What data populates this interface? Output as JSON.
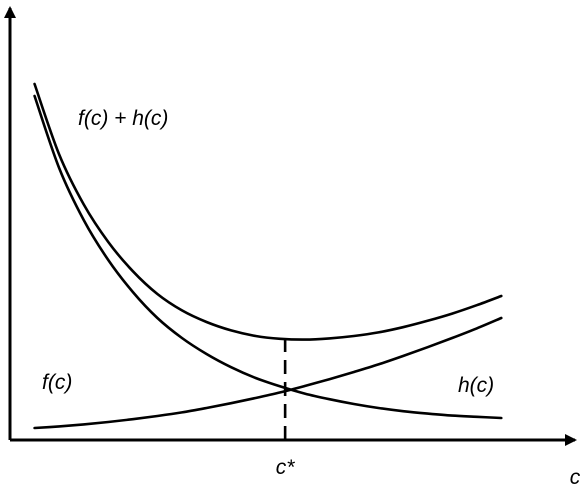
{
  "chart_data": {
    "type": "line",
    "title": "",
    "xlabel": "c",
    "ylabel": "",
    "grid": false,
    "series": [
      {
        "name": "f(c)",
        "x": [
          0.5,
          1,
          1.5,
          2,
          2.5,
          3,
          3.5,
          4,
          4.5,
          5,
          5.5,
          6,
          6.5,
          7,
          7.5,
          8,
          8.5,
          9,
          9.5,
          10
        ],
        "y": [
          0.3,
          0.34,
          0.39,
          0.45,
          0.52,
          0.6,
          0.69,
          0.8,
          0.92,
          1.05,
          1.19,
          1.35,
          1.52,
          1.7,
          1.89,
          2.1,
          2.32,
          2.55,
          2.79,
          3.05
        ]
      },
      {
        "name": "h(c)",
        "x": [
          0.5,
          1,
          1.5,
          2,
          2.5,
          3,
          3.5,
          4,
          4.5,
          5,
          5.5,
          6,
          6.5,
          7,
          7.5,
          8,
          8.5,
          9,
          9.5,
          10
        ],
        "y": [
          8.6,
          6.8,
          5.5,
          4.5,
          3.7,
          3.05,
          2.55,
          2.15,
          1.82,
          1.55,
          1.34,
          1.16,
          1.02,
          0.9,
          0.8,
          0.72,
          0.66,
          0.61,
          0.58,
          0.55
        ]
      },
      {
        "name": "f(c) + h(c)",
        "x": [
          0.5,
          1,
          1.5,
          2,
          2.5,
          3,
          3.5,
          4,
          4.5,
          5,
          5.5,
          6,
          6.5,
          7,
          7.5,
          8,
          8.5,
          9,
          9.5,
          10
        ],
        "y": [
          8.9,
          7.14,
          5.89,
          4.95,
          4.22,
          3.65,
          3.24,
          2.95,
          2.74,
          2.6,
          2.53,
          2.51,
          2.54,
          2.6,
          2.69,
          2.82,
          2.98,
          3.16,
          3.37,
          3.6
        ]
      }
    ],
    "marker": {
      "x": 5.6,
      "label": "c*"
    },
    "xlim": [
      0,
      11.5
    ],
    "ylim": [
      0,
      10
    ]
  }
}
